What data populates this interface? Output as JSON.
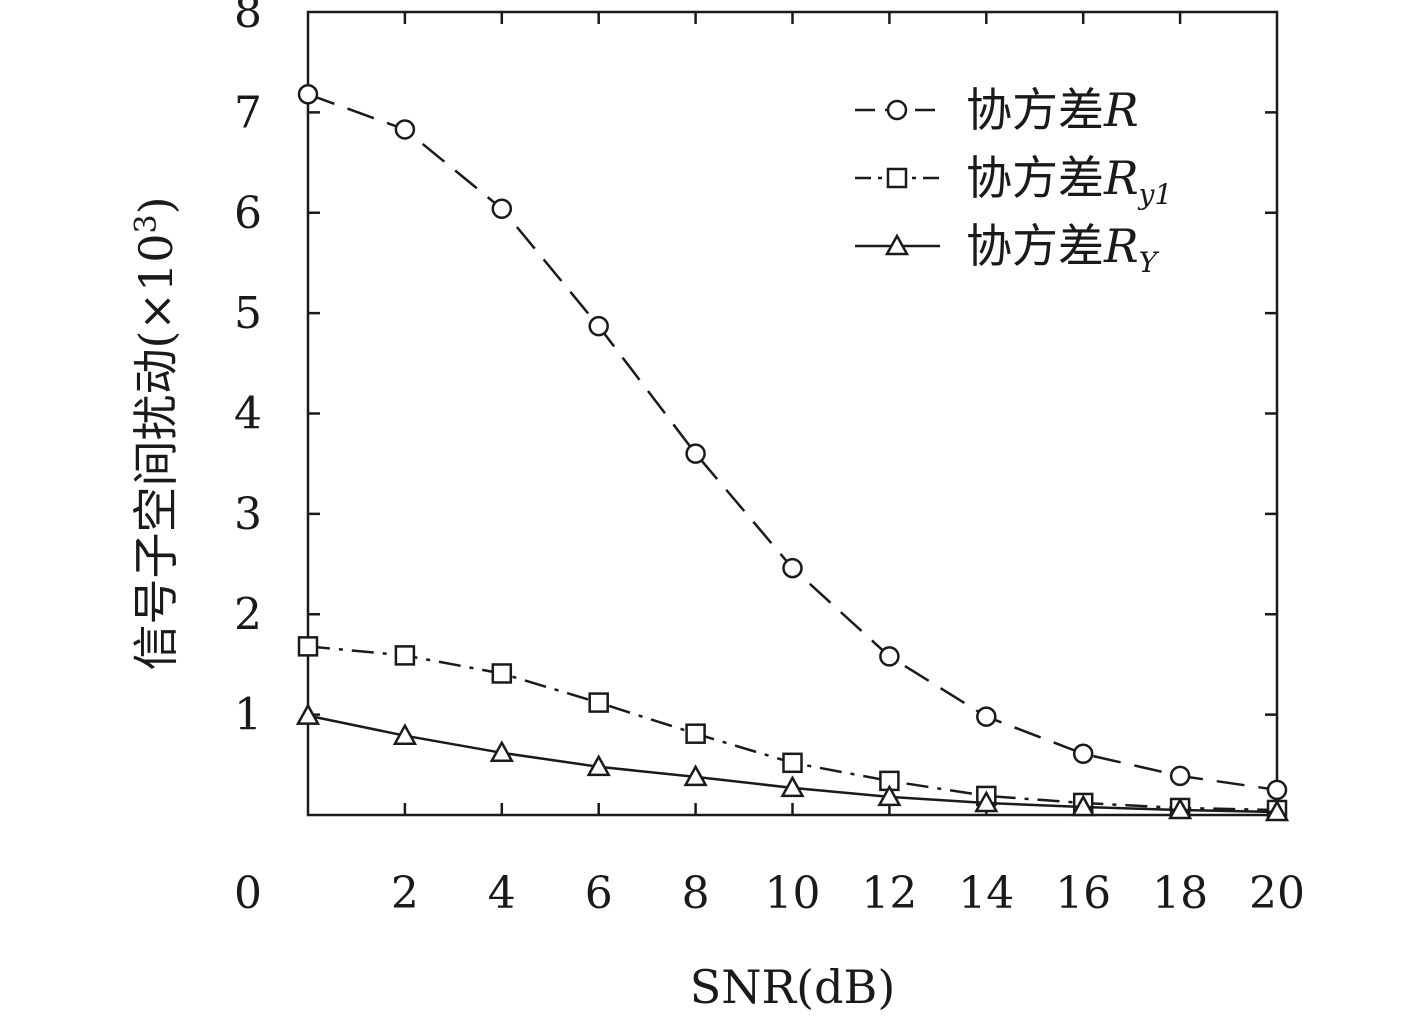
{
  "chart_data": {
    "type": "line",
    "x": [
      0,
      2,
      4,
      6,
      8,
      10,
      12,
      14,
      16,
      18,
      20
    ],
    "x_tick_labels": [
      "0",
      "2",
      "4",
      "6",
      "8",
      "10",
      "12",
      "14",
      "16",
      "18",
      "20"
    ],
    "y_tick_labels": [
      "1",
      "2",
      "3",
      "4",
      "5",
      "6",
      "7",
      "8"
    ],
    "xlim": [
      0,
      20
    ],
    "ylim": [
      0,
      8
    ],
    "xlabel": "SNR(dB)",
    "ylabel": "信号子空间扰动(×10³)",
    "ylabel_main": "信号子空间扰动(×10",
    "ylabel_exp": "3",
    "ylabel_close": ")",
    "grid": false,
    "legend_position": "top-right",
    "series": [
      {
        "name": "协方差R",
        "label_prefix": "协方差",
        "label_symbol": "R",
        "label_sub": "",
        "marker": "circle",
        "dash": "dashed",
        "values": [
          7.18,
          6.83,
          6.04,
          4.87,
          3.6,
          2.46,
          1.58,
          0.98,
          0.61,
          0.39,
          0.25
        ]
      },
      {
        "name": "协方差Ry1",
        "label_prefix": "协方差",
        "label_symbol": "R",
        "label_sub": "y1",
        "marker": "square",
        "dash": "dashdot",
        "values": [
          1.68,
          1.59,
          1.41,
          1.12,
          0.81,
          0.52,
          0.34,
          0.19,
          0.12,
          0.07,
          0.05
        ]
      },
      {
        "name": "协方差RY",
        "label_prefix": "协方差",
        "label_symbol": "R",
        "label_sub": "Y",
        "marker": "triangle",
        "dash": "solid",
        "values": [
          0.99,
          0.79,
          0.62,
          0.48,
          0.38,
          0.27,
          0.18,
          0.12,
          0.08,
          0.05,
          0.03
        ]
      }
    ]
  },
  "colors": {
    "line": "#1a1a1a",
    "background": "#ffffff"
  }
}
